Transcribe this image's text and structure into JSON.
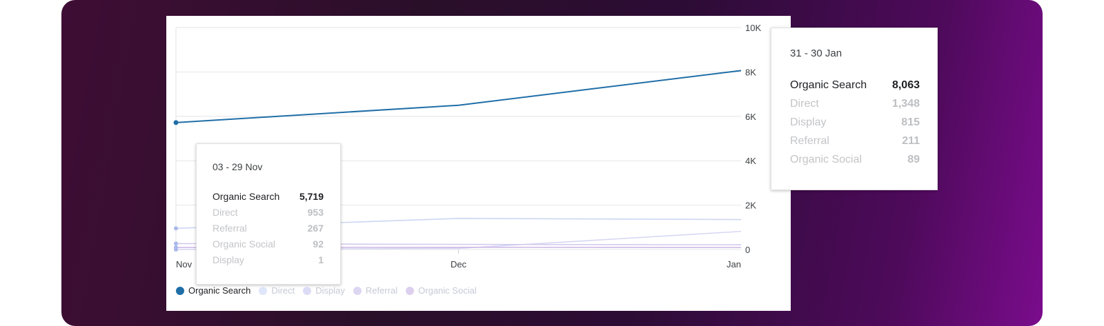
{
  "chart_data": {
    "type": "line",
    "categories": [
      "Nov",
      "Dec",
      "Jan"
    ],
    "y_ticks": [
      "10K",
      "8K",
      "6K",
      "4K",
      "2K",
      "0"
    ],
    "ylim": [
      0,
      10000
    ],
    "series": [
      {
        "name": "Organic Search",
        "color": "#1f6ea7",
        "values": [
          5719,
          6500,
          8063
        ],
        "active": true
      },
      {
        "name": "Direct",
        "color": "#cdd6f2",
        "values": [
          953,
          1400,
          1348
        ],
        "active": false
      },
      {
        "name": "Display",
        "color": "#d6d6f4",
        "values": [
          1,
          50,
          815
        ],
        "active": false
      },
      {
        "name": "Referral",
        "color": "#d3c9ee",
        "values": [
          267,
          230,
          211
        ],
        "active": false
      },
      {
        "name": "Organic Social",
        "color": "#cdb8e6",
        "values": [
          92,
          100,
          89
        ],
        "active": false
      }
    ]
  },
  "tooltip_nov": {
    "title": "03 - 29 Nov",
    "rows": [
      {
        "label": "Organic Search",
        "value": "5,719"
      },
      {
        "label": "Direct",
        "value": "953"
      },
      {
        "label": "Referral",
        "value": "267"
      },
      {
        "label": "Organic Social",
        "value": "92"
      },
      {
        "label": "Display",
        "value": "1"
      }
    ]
  },
  "tooltip_jan": {
    "title": "31 - 30 Jan",
    "rows": [
      {
        "label": "Organic Search",
        "value": "8,063"
      },
      {
        "label": "Direct",
        "value": "1,348"
      },
      {
        "label": "Display",
        "value": "815"
      },
      {
        "label": "Referral",
        "value": "211"
      },
      {
        "label": "Organic Social",
        "value": "89"
      }
    ]
  },
  "legend": [
    {
      "label": "Organic Search",
      "color": "#1f6ea7",
      "active": true
    },
    {
      "label": "Direct",
      "color": "#dfe6fa",
      "active": false
    },
    {
      "label": "Display",
      "color": "#dcdcf6",
      "active": false
    },
    {
      "label": "Referral",
      "color": "#ddd6f2",
      "active": false
    },
    {
      "label": "Organic Social",
      "color": "#ddd0ee",
      "active": false
    }
  ]
}
